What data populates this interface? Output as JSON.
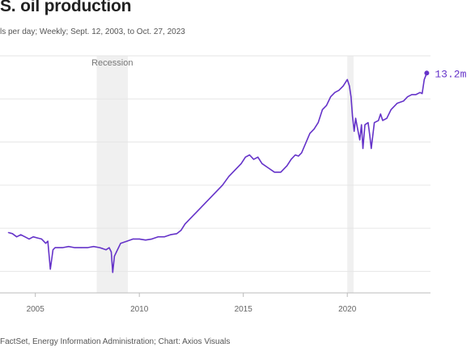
{
  "header": {
    "title": "S. oil production",
    "subtitle": "ls per day; Weekly; Sept. 12, 2003, to Oct. 27, 2023"
  },
  "footer": {
    "source": "FactSet, Energy Information Administration; Chart: Axios Visuals"
  },
  "chart_data": {
    "type": "line",
    "title": "S. oil production",
    "subtitle": "ls per day; Weekly; Sept. 12, 2003, to Oct. 27, 2023",
    "xlabel": "",
    "ylabel": "",
    "xlim": [
      2003.3,
      2024.0
    ],
    "ylim": [
      3.0,
      14.0
    ],
    "yticks": [
      4,
      6,
      8,
      10,
      12,
      14
    ],
    "xticks": [
      2005,
      2010,
      2015,
      2020
    ],
    "xtick_labels": [
      "2005",
      "2010",
      "2015",
      "2020"
    ],
    "grid": true,
    "line_color": "#6533c9",
    "shaded_periods": [
      {
        "label": "Recession",
        "start": 2007.95,
        "end": 2009.45
      },
      {
        "label": "",
        "start": 2020.0,
        "end": 2020.3
      }
    ],
    "end_label": "13.2m",
    "series": [
      {
        "name": "",
        "x": [
          2003.7,
          2003.9,
          2004.1,
          2004.3,
          2004.5,
          2004.7,
          2004.9,
          2005.1,
          2005.3,
          2005.5,
          2005.6,
          2005.72,
          2005.85,
          2005.95,
          2006.1,
          2006.3,
          2006.6,
          2006.9,
          2007.2,
          2007.5,
          2007.8,
          2008.1,
          2008.4,
          2008.55,
          2008.65,
          2008.72,
          2008.8,
          2008.9,
          2009.1,
          2009.4,
          2009.7,
          2010.0,
          2010.3,
          2010.6,
          2010.9,
          2011.2,
          2011.5,
          2011.8,
          2012.0,
          2012.2,
          2012.5,
          2012.8,
          2013.1,
          2013.4,
          2013.7,
          2014.0,
          2014.3,
          2014.6,
          2014.9,
          2015.1,
          2015.3,
          2015.5,
          2015.7,
          2015.9,
          2016.2,
          2016.5,
          2016.8,
          2017.1,
          2017.3,
          2017.5,
          2017.65,
          2017.8,
          2018.0,
          2018.2,
          2018.4,
          2018.6,
          2018.8,
          2019.0,
          2019.2,
          2019.4,
          2019.6,
          2019.8,
          2020.0,
          2020.1,
          2020.18,
          2020.25,
          2020.33,
          2020.4,
          2020.5,
          2020.6,
          2020.68,
          2020.75,
          2020.85,
          2021.0,
          2021.08,
          2021.15,
          2021.3,
          2021.5,
          2021.6,
          2021.7,
          2021.9,
          2022.1,
          2022.4,
          2022.7,
          2022.9,
          2023.1,
          2023.3,
          2023.5,
          2023.6,
          2023.7,
          2023.82
        ],
        "y": [
          5.8,
          5.75,
          5.6,
          5.7,
          5.6,
          5.5,
          5.6,
          5.55,
          5.5,
          5.3,
          5.4,
          4.1,
          5.0,
          5.1,
          5.1,
          5.1,
          5.15,
          5.1,
          5.1,
          5.1,
          5.15,
          5.1,
          5.0,
          5.1,
          4.9,
          3.95,
          4.7,
          4.9,
          5.3,
          5.4,
          5.5,
          5.5,
          5.45,
          5.5,
          5.6,
          5.6,
          5.7,
          5.75,
          5.9,
          6.2,
          6.5,
          6.8,
          7.1,
          7.4,
          7.7,
          8.0,
          8.4,
          8.7,
          9.0,
          9.3,
          9.4,
          9.2,
          9.3,
          9.0,
          8.8,
          8.6,
          8.6,
          8.9,
          9.2,
          9.4,
          9.35,
          9.5,
          9.95,
          10.4,
          10.6,
          10.9,
          11.5,
          11.7,
          12.1,
          12.3,
          12.4,
          12.6,
          12.9,
          12.6,
          12.1,
          11.2,
          10.5,
          11.1,
          10.6,
          10.1,
          10.8,
          9.7,
          10.8,
          10.9,
          10.3,
          9.7,
          10.9,
          11.0,
          11.3,
          11.0,
          11.1,
          11.5,
          11.8,
          11.9,
          12.1,
          12.2,
          12.2,
          12.3,
          12.25,
          12.9,
          13.2
        ]
      }
    ]
  }
}
